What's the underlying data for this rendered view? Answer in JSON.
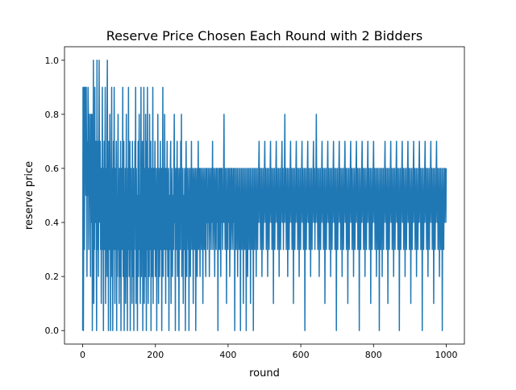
{
  "chart_data": {
    "type": "line",
    "title": "Reserve Price Chosen Each Round with 2 Bidders",
    "xlabel": "round",
    "ylabel": "reserve price",
    "xlim": [
      -50,
      1050
    ],
    "ylim": [
      -0.05,
      1.05
    ],
    "x_ticks": [
      0,
      200,
      400,
      600,
      800,
      1000
    ],
    "y_ticks": [
      0.0,
      0.2,
      0.4,
      0.6,
      0.8,
      1.0
    ],
    "x_tick_labels": [
      "0",
      "200",
      "400",
      "600",
      "800",
      "1000"
    ],
    "y_tick_labels": [
      "0.0",
      "0.2",
      "0.4",
      "0.6",
      "0.8",
      "1.0"
    ],
    "grid": false,
    "line_color": "#1f77b4",
    "series": [
      {
        "x_start": 0,
        "x_step": 1,
        "values": [
          0.0,
          0.9,
          0.0,
          0.5,
          0.9,
          0.3,
          0.9,
          0.8,
          0.9,
          0.5,
          0.9,
          0.6,
          0.2,
          0.7,
          0.5,
          0.9,
          0.8,
          0.3,
          0.5,
          0.8,
          0.5,
          0.6,
          0.2,
          0.8,
          0.7,
          0.4,
          0.8,
          0.0,
          0.4,
          0.6,
          1.0,
          0.1,
          0.5,
          0.3,
          0.9,
          0.4,
          0.5,
          0.7,
          0.3,
          0.0,
          1.0,
          0.4,
          0.3,
          0.7,
          0.2,
          0.6,
          1.0,
          0.5,
          0.4,
          0.7,
          0.3,
          0.6,
          0.1,
          0.4,
          0.5,
          0.9,
          0.3,
          0.6,
          0.0,
          0.4,
          0.7,
          0.3,
          0.5,
          0.9,
          0.1,
          0.6,
          0.2,
          0.4,
          0.8,
          1.0,
          0.2,
          0.5,
          0.0,
          0.7,
          0.4,
          0.3,
          0.8,
          0.6,
          0.0,
          0.5,
          0.3,
          0.9,
          0.2,
          0.6,
          0.0,
          0.4,
          0.7,
          0.3,
          0.9,
          0.5,
          0.1,
          0.6,
          0.3,
          0.4,
          0.7,
          0.0,
          0.5,
          0.2,
          0.6,
          0.8,
          0.3,
          0.4,
          0.1,
          0.6,
          0.5,
          0.2,
          0.7,
          0.0,
          0.4,
          0.6,
          0.3,
          0.5,
          0.9,
          0.2,
          0.4,
          0.7,
          0.0,
          0.5,
          0.3,
          0.6,
          0.1,
          0.4,
          0.8,
          0.2,
          0.5,
          0.0,
          0.6,
          0.3,
          0.9,
          0.4,
          0.2,
          0.5,
          0.7,
          0.0,
          0.4,
          0.6,
          0.3,
          0.5,
          0.1,
          0.7,
          0.4,
          0.2,
          0.6,
          0.0,
          0.5,
          0.3,
          0.7,
          0.4,
          0.9,
          0.1,
          0.6,
          0.3,
          0.5,
          0.0,
          0.4,
          0.7,
          0.2,
          0.6,
          0.8,
          0.3,
          0.5,
          0.1,
          0.4,
          0.9,
          0.2,
          0.6,
          0.4,
          0.7,
          0.0,
          0.5,
          0.3,
          0.9,
          0.1,
          0.4,
          0.6,
          0.2,
          0.8,
          0.5,
          0.0,
          0.7,
          0.3,
          0.9,
          0.4,
          0.1,
          0.6,
          0.5,
          0.2,
          0.8,
          0.4,
          0.3,
          0.7,
          0.0,
          0.5,
          0.6,
          0.2,
          0.4,
          0.9,
          0.1,
          0.5,
          0.6,
          0.3,
          0.4,
          0.7,
          0.2,
          0.5,
          0.4,
          0.6,
          0.0,
          0.5,
          0.3,
          0.8,
          0.4,
          0.1,
          0.6,
          0.5,
          0.2,
          0.4,
          0.7,
          0.3,
          0.5,
          0.6,
          0.0,
          0.4,
          0.5,
          0.9,
          0.2,
          0.6,
          0.4,
          0.3,
          0.8,
          0.5,
          0.4,
          0.1,
          0.6,
          0.5,
          0.3,
          0.7,
          0.4,
          0.2,
          0.5,
          0.6,
          0.0,
          0.4,
          0.5,
          0.3,
          0.6,
          0.7,
          0.1,
          0.4,
          0.5,
          0.6,
          0.2,
          0.5,
          0.4,
          0.3,
          0.6,
          0.8,
          0.4,
          0.5,
          0.0,
          0.6,
          0.4,
          0.3,
          0.5,
          0.7,
          0.2,
          0.4,
          0.6,
          0.5,
          0.0,
          0.4,
          0.6,
          0.5,
          0.3,
          0.7,
          0.4,
          0.8,
          0.2,
          0.5,
          0.4,
          0.6,
          0.1,
          0.5,
          0.4,
          0.3,
          0.6,
          0.5,
          0.0,
          0.4,
          0.7,
          0.5,
          0.2,
          0.6,
          0.4,
          0.5,
          0.3,
          0.6,
          0.0,
          0.5,
          0.4,
          0.6,
          0.2,
          0.5,
          0.4,
          0.7,
          0.3,
          0.5,
          0.6,
          0.4,
          0.1,
          0.5,
          0.6,
          0.4,
          0.3,
          0.5,
          0.6,
          0.0,
          0.4,
          0.5,
          0.6,
          0.2,
          0.4,
          0.5,
          0.7,
          0.3,
          0.5,
          0.6,
          0.4,
          0.2,
          0.6,
          0.5,
          0.4,
          0.3,
          0.6,
          0.5,
          0.4,
          0.1,
          0.6,
          0.5,
          0.4,
          0.3,
          0.6,
          0.5,
          0.4,
          0.2,
          0.6,
          0.5,
          0.4,
          0.6,
          0.3,
          0.5,
          0.4,
          0.6,
          0.5,
          0.2,
          0.4,
          0.6,
          0.5,
          0.4,
          0.3,
          0.6,
          0.4,
          0.5,
          0.7,
          0.3,
          0.4,
          0.6,
          0.5,
          0.4,
          0.2,
          0.6,
          0.5,
          0.4,
          0.3,
          0.6,
          0.5,
          0.4,
          0.6,
          0.0,
          0.5,
          0.4,
          0.6,
          0.3,
          0.5,
          0.6,
          0.4,
          0.2,
          0.6,
          0.5,
          0.4,
          0.6,
          0.3,
          0.5,
          0.4,
          0.6,
          0.8,
          0.4,
          0.5,
          0.3,
          0.6,
          0.4,
          0.5,
          0.1,
          0.6,
          0.4,
          0.5,
          0.3,
          0.6,
          0.4,
          0.5,
          0.6,
          0.2,
          0.4,
          0.5,
          0.6,
          0.3,
          0.4,
          0.6,
          0.5,
          0.4,
          0.3,
          0.6,
          0.5,
          0.4,
          0.6,
          0.0,
          0.5,
          0.4,
          0.6,
          0.3,
          0.5,
          0.4,
          0.6,
          0.2,
          0.5,
          0.4,
          0.6,
          0.3,
          0.5,
          0.4,
          0.6,
          0.0,
          0.5,
          0.4,
          0.6,
          0.3,
          0.5,
          0.4,
          0.6,
          0.1,
          0.5,
          0.4,
          0.6,
          0.3,
          0.5,
          0.4,
          0.6,
          0.0,
          0.5,
          0.4,
          0.6,
          0.2,
          0.5,
          0.4,
          0.6,
          0.3,
          0.5,
          0.4,
          0.6,
          0.1,
          0.5,
          0.4,
          0.6,
          0.3,
          0.5,
          0.4,
          0.6,
          0.0,
          0.5,
          0.4,
          0.6,
          0.3,
          0.5,
          0.4,
          0.6,
          0.2,
          0.5,
          0.4,
          0.6,
          0.3,
          0.5,
          0.4,
          0.6,
          0.7,
          0.5,
          0.4,
          0.6,
          0.3,
          0.5,
          0.4,
          0.6,
          0.2,
          0.5,
          0.4,
          0.6,
          0.3,
          0.5,
          0.4,
          0.6,
          0.7,
          0.5,
          0.4,
          0.6,
          0.3,
          0.5,
          0.4,
          0.6,
          0.2,
          0.5,
          0.4,
          0.6,
          0.3,
          0.5,
          0.4,
          0.6,
          0.7,
          0.5,
          0.4,
          0.6,
          0.3,
          0.5,
          0.4,
          0.6,
          0.1,
          0.5,
          0.4,
          0.6,
          0.3,
          0.5,
          0.4,
          0.6,
          0.7,
          0.5,
          0.4,
          0.6,
          0.3,
          0.5,
          0.4,
          0.6,
          0.2,
          0.5,
          0.4,
          0.6,
          0.3,
          0.5,
          0.4,
          0.6,
          0.7,
          0.5,
          0.4,
          0.6,
          0.3,
          0.5,
          0.4,
          0.6,
          0.8,
          0.5,
          0.4,
          0.6,
          0.3,
          0.5,
          0.4,
          0.6,
          0.2,
          0.5,
          0.4,
          0.6,
          0.3,
          0.5,
          0.4,
          0.6,
          0.7,
          0.5,
          0.4,
          0.6,
          0.3,
          0.5,
          0.4,
          0.6,
          0.1,
          0.5,
          0.4,
          0.6,
          0.3,
          0.5,
          0.4,
          0.6,
          0.7,
          0.5,
          0.4,
          0.6,
          0.3,
          0.5,
          0.4,
          0.6,
          0.2,
          0.5,
          0.4,
          0.6,
          0.3,
          0.5,
          0.4,
          0.6,
          0.7,
          0.5,
          0.4,
          0.6,
          0.3,
          0.5,
          0.4,
          0.6,
          0.0,
          0.5,
          0.4,
          0.6,
          0.3,
          0.5,
          0.4,
          0.6,
          0.7,
          0.5,
          0.4,
          0.6,
          0.3,
          0.5,
          0.4,
          0.6,
          0.2,
          0.5,
          0.4,
          0.6,
          0.3,
          0.5,
          0.4,
          0.6,
          0.7,
          0.5,
          0.4,
          0.6,
          0.3,
          0.5,
          0.4,
          0.6,
          0.8,
          0.5,
          0.4,
          0.6,
          0.3,
          0.5,
          0.4,
          0.6,
          0.2,
          0.5,
          0.4,
          0.6,
          0.3,
          0.5,
          0.4,
          0.6,
          0.7,
          0.5,
          0.4,
          0.6,
          0.3,
          0.5,
          0.4,
          0.6,
          0.1,
          0.5,
          0.4,
          0.6,
          0.3,
          0.5,
          0.4,
          0.6,
          0.7,
          0.5,
          0.4,
          0.6,
          0.3,
          0.5,
          0.4,
          0.6,
          0.2,
          0.5,
          0.4,
          0.6,
          0.3,
          0.5,
          0.4,
          0.6,
          0.7,
          0.5,
          0.4,
          0.6,
          0.3,
          0.5,
          0.4,
          0.6,
          0.0,
          0.5,
          0.4,
          0.6,
          0.3,
          0.5,
          0.4,
          0.6,
          0.7,
          0.5,
          0.4,
          0.6,
          0.3,
          0.5,
          0.4,
          0.6,
          0.2,
          0.5,
          0.4,
          0.6,
          0.3,
          0.5,
          0.4,
          0.6,
          0.7,
          0.5,
          0.4,
          0.6,
          0.3,
          0.5,
          0.4,
          0.6,
          0.1,
          0.5,
          0.4,
          0.6,
          0.3,
          0.5,
          0.4,
          0.6,
          0.7,
          0.5,
          0.4,
          0.6,
          0.3,
          0.5,
          0.4,
          0.6,
          0.2,
          0.5,
          0.4,
          0.6,
          0.3,
          0.5,
          0.4,
          0.6,
          0.7,
          0.5,
          0.4,
          0.6,
          0.3,
          0.5,
          0.4,
          0.6,
          0.0,
          0.5,
          0.4,
          0.6,
          0.3,
          0.5,
          0.4,
          0.6,
          0.7,
          0.5,
          0.4,
          0.6,
          0.3,
          0.5,
          0.4,
          0.6,
          0.2,
          0.5,
          0.4,
          0.6,
          0.3,
          0.5,
          0.4,
          0.6,
          0.7,
          0.5,
          0.4,
          0.6,
          0.3,
          0.5,
          0.4,
          0.6,
          0.1,
          0.5,
          0.4,
          0.6,
          0.3,
          0.5,
          0.4,
          0.6,
          0.7,
          0.5,
          0.4,
          0.6,
          0.3,
          0.5,
          0.4,
          0.6,
          0.2,
          0.5,
          0.4,
          0.6,
          0.3,
          0.5,
          0.4,
          0.6,
          0.0,
          0.5,
          0.4,
          0.6,
          0.3,
          0.5,
          0.4,
          0.6,
          0.2,
          0.5,
          0.4,
          0.6,
          0.3,
          0.5,
          0.4,
          0.6,
          0.7,
          0.5,
          0.4,
          0.6,
          0.3,
          0.5,
          0.4,
          0.6,
          0.1,
          0.5,
          0.4,
          0.6,
          0.3,
          0.5,
          0.4,
          0.6,
          0.7,
          0.5,
          0.4,
          0.6,
          0.3,
          0.5,
          0.4,
          0.6,
          0.2,
          0.5,
          0.4,
          0.6,
          0.3,
          0.5,
          0.4,
          0.6,
          0.7,
          0.5,
          0.4,
          0.6,
          0.3,
          0.5,
          0.4,
          0.6,
          0.0,
          0.5,
          0.4,
          0.6,
          0.3,
          0.5,
          0.4,
          0.6,
          0.7,
          0.5,
          0.4,
          0.6,
          0.3,
          0.5,
          0.4,
          0.6,
          0.2,
          0.5,
          0.4,
          0.6,
          0.3,
          0.5,
          0.4,
          0.6,
          0.7,
          0.5,
          0.4,
          0.6,
          0.3,
          0.5,
          0.4,
          0.6,
          0.1,
          0.5,
          0.4,
          0.6,
          0.3,
          0.5,
          0.4,
          0.6,
          0.7,
          0.5,
          0.4,
          0.6,
          0.3,
          0.5,
          0.4,
          0.6,
          0.2,
          0.5,
          0.4,
          0.6,
          0.3,
          0.5,
          0.4,
          0.6,
          0.7,
          0.5,
          0.4,
          0.6,
          0.3,
          0.5,
          0.4,
          0.6,
          0.0,
          0.5,
          0.4,
          0.6,
          0.3,
          0.5,
          0.4,
          0.6,
          0.7,
          0.5,
          0.4,
          0.6,
          0.3,
          0.5,
          0.4,
          0.6,
          0.2,
          0.5,
          0.4,
          0.6,
          0.3,
          0.5,
          0.4,
          0.6,
          0.7,
          0.5,
          0.4,
          0.6,
          0.3,
          0.5,
          0.4,
          0.6,
          0.1,
          0.5,
          0.4,
          0.6,
          0.3,
          0.5,
          0.4,
          0.6,
          0.7,
          0.5,
          0.4,
          0.6,
          0.3,
          0.5,
          0.4,
          0.6,
          0.2,
          0.5,
          0.4,
          0.6,
          0.3,
          0.5,
          0.4,
          0.6,
          0.0,
          0.5,
          0.4,
          0.6,
          0.3,
          0.5,
          0.4,
          0.6,
          0.6,
          0.5,
          0.4,
          0.6
        ]
      }
    ]
  }
}
